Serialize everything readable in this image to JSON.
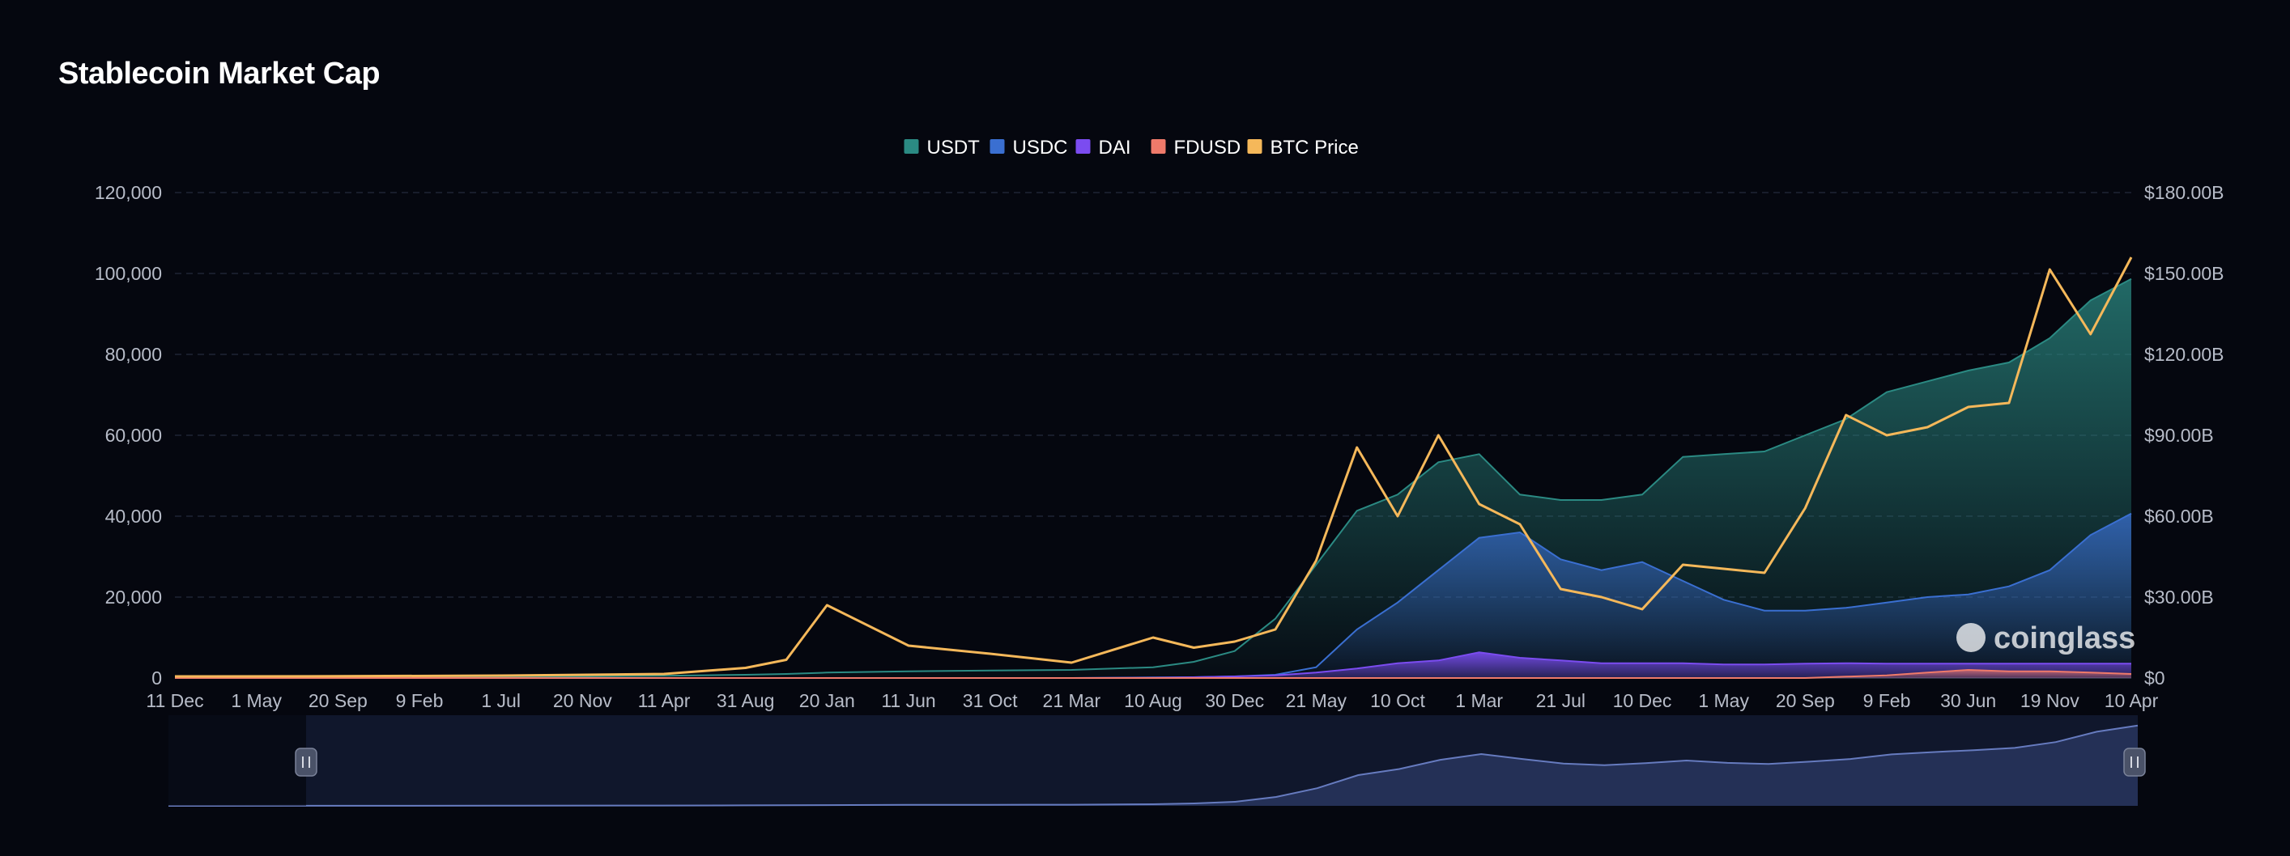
{
  "page": {
    "title": "Stablecoin Market Cap"
  },
  "watermark": {
    "text": "coinglass",
    "icon": "coinglass-logo-icon"
  },
  "colors": {
    "background": "#05070f",
    "USDT": "#2b8a83",
    "USDC": "#3a6fd1",
    "DAI": "#7b4cf0",
    "FDUSD": "#ef7a6a",
    "BTC Price": "#f5b85a",
    "grid": "#1f2535",
    "navigator_fill": "#2a3760",
    "navigator_line": "#6d82c8"
  },
  "chart_data": {
    "type": "area",
    "title": "Stablecoin Market Cap",
    "legend": {
      "position": "top-center",
      "items": [
        "USDT",
        "USDC",
        "DAI",
        "FDUSD",
        "BTC Price"
      ]
    },
    "grid": true,
    "x_tick_labels": [
      "11 Dec",
      "1 May",
      "20 Sep",
      "9 Feb",
      "1 Jul",
      "20 Nov",
      "11 Apr",
      "31 Aug",
      "20 Jan",
      "11 Jun",
      "31 Oct",
      "21 Mar",
      "10 Aug",
      "30 Dec",
      "21 May",
      "10 Oct",
      "1 Mar",
      "21 Jul",
      "10 Dec",
      "1 May",
      "20 Sep",
      "9 Feb",
      "30 Jun",
      "19 Nov",
      "10 Apr"
    ],
    "y_left": {
      "label": "",
      "range": [
        0,
        120000
      ],
      "ticks": [
        "120,000",
        "100,000",
        "80,000",
        "60,000",
        "40,000",
        "20,000",
        "0"
      ]
    },
    "y_right": {
      "label": "",
      "range": [
        0,
        180
      ],
      "unit": "B",
      "ticks": [
        "$180.00B",
        "$150.00B",
        "$120.00B",
        "$90.00B",
        "$60.00B",
        "$30.00B",
        "$0"
      ]
    },
    "x": [
      0,
      2,
      4,
      6,
      7,
      7.5,
      8,
      9,
      10,
      11,
      12,
      12.5,
      13,
      13.5,
      14,
      14.5,
      15,
      15.5,
      16,
      16.5,
      17,
      17.5,
      18,
      18.5,
      19,
      19.5,
      20,
      20.5,
      21,
      21.5,
      22,
      22.5,
      23,
      23.5,
      24
    ],
    "series": [
      {
        "name": "USDT",
        "axis": "right",
        "values": [
          0.1,
          0.2,
          0.4,
          0.8,
          1.2,
          1.5,
          2.0,
          2.5,
          2.8,
          3.0,
          4.0,
          6.0,
          10.0,
          22.0,
          42.0,
          62.0,
          68.0,
          80.0,
          83.0,
          68.0,
          66.0,
          66.0,
          68.0,
          82.0,
          83.0,
          84.0,
          90.0,
          96.0,
          106.0,
          110.0,
          114.0,
          117.0,
          126.0,
          140.0,
          148.0
        ]
      },
      {
        "name": "USDC",
        "axis": "right",
        "values": [
          0,
          0,
          0,
          0,
          0,
          0,
          0,
          0,
          0,
          0,
          0.2,
          0.3,
          0.6,
          1.2,
          4.0,
          18.0,
          28.0,
          40.0,
          52.0,
          54.0,
          44.0,
          40.0,
          43.0,
          36.0,
          29.0,
          25.0,
          25.0,
          26.0,
          28.0,
          30.0,
          31.0,
          34.0,
          40.0,
          53.0,
          61.0
        ]
      },
      {
        "name": "DAI",
        "axis": "right",
        "values": [
          0,
          0,
          0,
          0,
          0,
          0,
          0,
          0,
          0,
          0,
          0.1,
          0.3,
          0.6,
          1.0,
          2.0,
          3.5,
          5.5,
          6.5,
          9.5,
          7.5,
          6.5,
          5.5,
          5.5,
          5.5,
          5.0,
          5.0,
          5.3,
          5.5,
          5.3,
          5.3,
          5.3,
          5.3,
          5.3,
          5.3,
          5.3
        ]
      },
      {
        "name": "FDUSD",
        "axis": "right",
        "values": [
          0,
          0,
          0,
          0,
          0,
          0,
          0,
          0,
          0,
          0,
          0,
          0,
          0,
          0,
          0,
          0,
          0,
          0,
          0,
          0,
          0,
          0,
          0,
          0,
          0,
          0,
          0,
          0.5,
          1.0,
          2.0,
          3.0,
          2.5,
          2.5,
          2.0,
          1.5
        ]
      },
      {
        "name": "BTC Price",
        "axis": "left",
        "values": [
          400,
          450,
          600,
          1000,
          2500,
          4500,
          18000,
          8000,
          6000,
          3800,
          10000,
          7500,
          9000,
          12000,
          29000,
          57000,
          40000,
          60000,
          43000,
          38000,
          22000,
          20000,
          17000,
          28000,
          27000,
          26000,
          42000,
          65000,
          60000,
          62000,
          67000,
          68000,
          101000,
          85000,
          104000
        ]
      }
    ],
    "navigator": {
      "values": [
        0.1,
        0.2,
        0.4,
        0.8,
        1.2,
        1.5,
        2.0,
        2.5,
        2.8,
        3.0,
        4.2,
        6.3,
        10.6,
        23.2,
        46.0,
        80.0,
        96.0,
        120.0,
        135.0,
        122.0,
        110.0,
        106.0,
        111.0,
        118.0,
        112.0,
        109.0,
        115.0,
        122.0,
        134.0,
        140.0,
        145.0,
        151.0,
        166.0,
        193.0,
        209.0
      ],
      "range": [
        0,
        215
      ]
    }
  }
}
